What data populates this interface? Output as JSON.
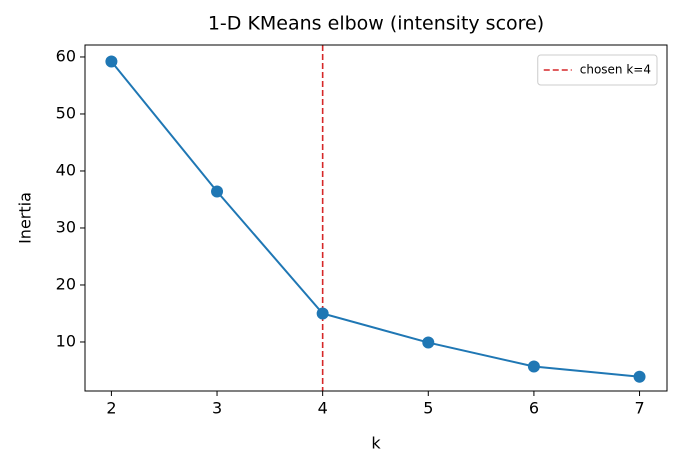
{
  "chart_data": {
    "type": "line",
    "title": "1-D KMeans elbow (intensity score)",
    "x_label": "k",
    "y_label": "Inertia",
    "x": [
      2,
      3,
      4,
      5,
      6,
      7
    ],
    "series": [
      {
        "color": "#1f77b4",
        "values": [
          59.2,
          36.4,
          15.0,
          9.9,
          5.7,
          3.9
        ]
      }
    ],
    "vlines": [
      {
        "x": 4,
        "name": "chosen k=4",
        "color": "#d62728"
      }
    ],
    "xlim": [
      1.75,
      7.26
    ],
    "ylim": [
      1.4,
      62.1
    ],
    "xticks": [
      2,
      3,
      4,
      5,
      6,
      7
    ],
    "yticks": [
      10,
      20,
      30,
      40,
      50,
      60
    ],
    "grid": false,
    "legend": "upper right",
    "markers": true
  }
}
